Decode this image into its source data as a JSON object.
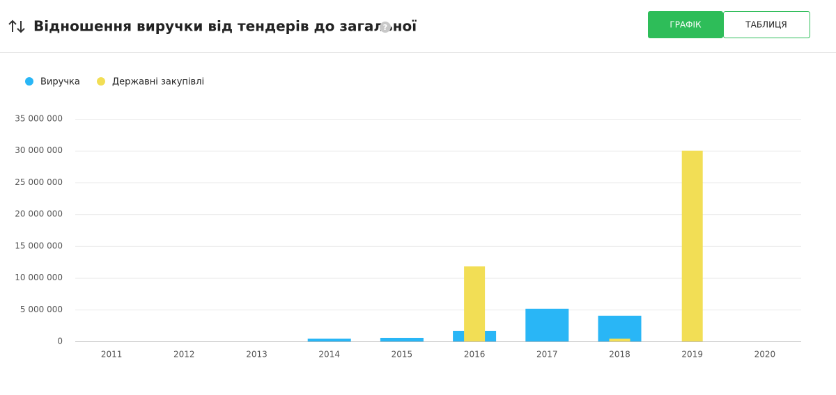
{
  "header": {
    "buttons": [
      "ГРАФІК",
      "ТАБЛИЦЯ"
    ]
  },
  "chart_data": {
    "type": "bar",
    "title": "Відношення виручки від тендерів до загальної",
    "categories": [
      "2011",
      "2012",
      "2013",
      "2014",
      "2015",
      "2016",
      "2017",
      "2018",
      "2019",
      "2020"
    ],
    "series": [
      {
        "name": "Виручка",
        "color": "#29b6f6",
        "values": [
          0,
          0,
          0,
          450000,
          550000,
          1650000,
          5150000,
          4050000,
          0,
          0
        ]
      },
      {
        "name": "Державні закупівлі",
        "color": "#f2de55",
        "values": [
          0,
          0,
          0,
          0,
          0,
          11800000,
          0,
          450000,
          30000000,
          0
        ]
      }
    ],
    "ylim": [
      0,
      35000000
    ],
    "yticks": [
      0,
      {
        "value": 5000000,
        "label": "5 000 000"
      },
      {
        "value": 10000000,
        "label": "10 000 000"
      },
      {
        "value": 15000000,
        "label": "15 000 000"
      },
      {
        "value": 20000000,
        "label": "20 000 000"
      },
      {
        "value": 25000000,
        "label": "25 000 000"
      },
      {
        "value": 30000000,
        "label": "30 000 000"
      },
      {
        "value": 35000000,
        "label": "35 000 000"
      }
    ],
    "grid": true
  }
}
